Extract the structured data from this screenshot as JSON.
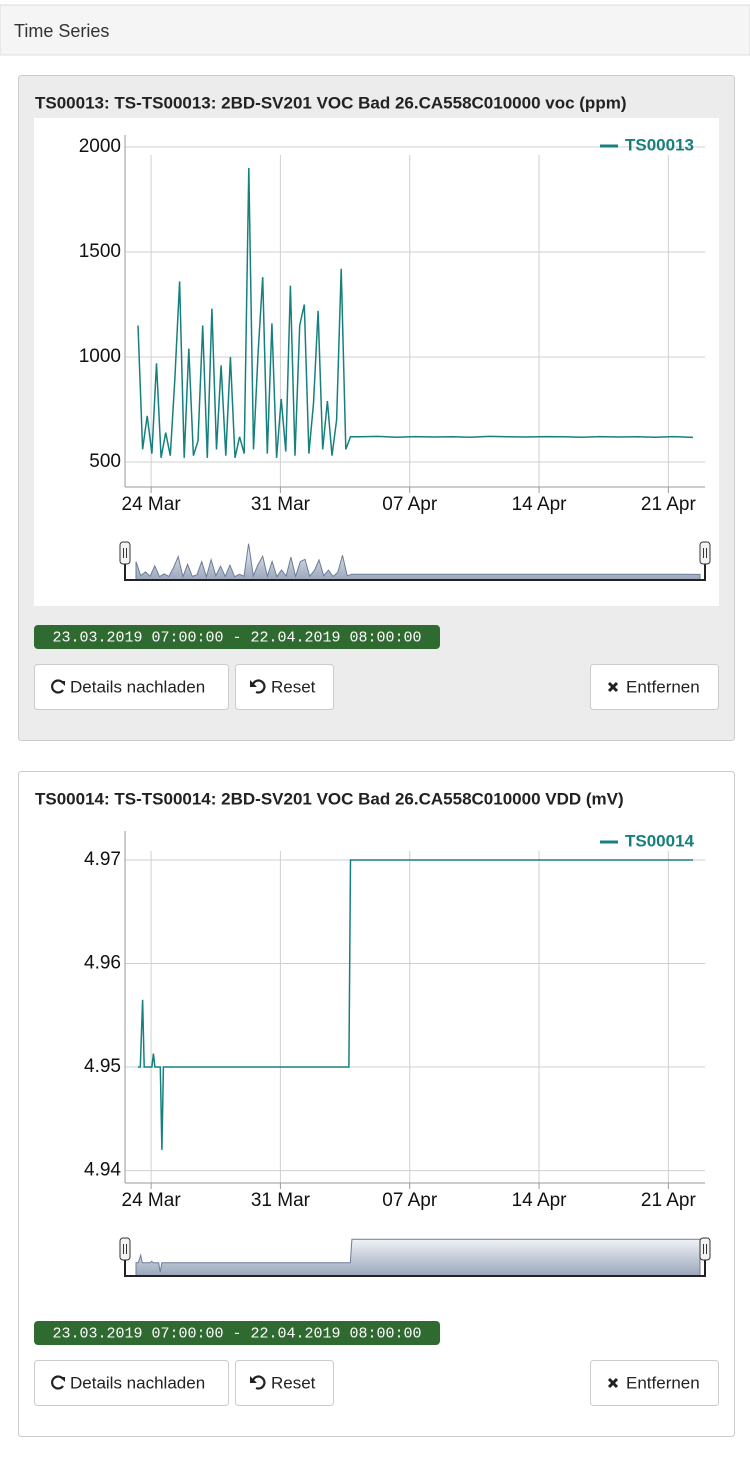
{
  "header": {
    "title": "Time Series"
  },
  "panels": [
    {
      "range_label": "23.03.2019 07:00:00 - 22.04.2019 08:00:00",
      "buttons": [
        "Details nachladen",
        "Reset",
        "Entfernen"
      ]
    },
    {
      "range_label": "23.03.2019 07:00:00 - 22.04.2019 08:00:00",
      "buttons": [
        "Details nachladen",
        "Reset",
        "Entfernen"
      ]
    }
  ],
  "chart_data": [
    {
      "type": "line",
      "title": "TS00013: TS-TS00013: 2BD-SV201 VOC Bad 26.CA558C010000 voc (ppm)",
      "x": [
        "2019-03-23T07:00",
        "2019-03-23T13:00",
        "2019-03-23T19:00",
        "2019-03-24T01:00",
        "2019-03-24T07:00",
        "2019-03-24T13:00",
        "2019-03-24T19:00",
        "2019-03-25T01:00",
        "2019-03-25T07:00",
        "2019-03-25T13:00",
        "2019-03-25T19:00",
        "2019-03-26T01:00",
        "2019-03-26T07:00",
        "2019-03-26T13:00",
        "2019-03-26T19:00",
        "2019-03-27T01:00",
        "2019-03-27T07:00",
        "2019-03-27T13:00",
        "2019-03-27T19:00",
        "2019-03-28T01:00",
        "2019-03-28T07:00",
        "2019-03-28T13:00",
        "2019-03-28T19:00",
        "2019-03-29T01:00",
        "2019-03-29T07:00",
        "2019-03-29T13:00",
        "2019-03-29T19:00",
        "2019-03-30T01:00",
        "2019-03-30T07:00",
        "2019-03-30T13:00",
        "2019-03-30T19:00",
        "2019-03-31T01:00",
        "2019-03-31T07:00",
        "2019-03-31T13:00",
        "2019-03-31T19:00",
        "2019-04-01T01:00",
        "2019-04-01T07:00",
        "2019-04-01T13:00",
        "2019-04-01T19:00",
        "2019-04-02T01:00",
        "2019-04-02T07:00",
        "2019-04-02T13:00",
        "2019-04-02T19:00",
        "2019-04-03T01:00",
        "2019-04-03T07:00",
        "2019-04-03T13:00",
        "2019-04-03T19:00",
        "2019-04-04T07:00",
        "2019-04-05T07:00",
        "2019-04-06T07:00",
        "2019-04-07T07:00",
        "2019-04-08T07:00",
        "2019-04-09T07:00",
        "2019-04-10T07:00",
        "2019-04-11T07:00",
        "2019-04-12T07:00",
        "2019-04-13T07:00",
        "2019-04-14T07:00",
        "2019-04-15T07:00",
        "2019-04-16T07:00",
        "2019-04-17T07:00",
        "2019-04-18T07:00",
        "2019-04-19T07:00",
        "2019-04-20T07:00",
        "2019-04-21T07:00",
        "2019-04-22T08:00"
      ],
      "series": [
        {
          "name": "TS00013",
          "color": "#17807e",
          "values": [
            1150,
            560,
            720,
            540,
            970,
            520,
            640,
            530,
            900,
            1360,
            520,
            1040,
            530,
            600,
            1150,
            520,
            1230,
            560,
            960,
            530,
            1000,
            520,
            620,
            540,
            1900,
            560,
            1020,
            1380,
            540,
            1160,
            520,
            800,
            550,
            1340,
            530,
            1150,
            1250,
            540,
            780,
            1220,
            560,
            790,
            530,
            700,
            1420,
            560,
            620,
            620,
            622,
            618,
            621,
            619,
            620,
            618,
            622,
            620,
            619,
            621,
            620,
            618,
            621,
            619,
            620,
            618,
            621,
            617
          ]
        }
      ],
      "xlim": [
        "2019-03-23T07:00",
        "2019-04-22T08:00"
      ],
      "xticks": [
        {
          "value": "2019-03-24T00:00",
          "label": "24 Mar"
        },
        {
          "value": "2019-03-31T00:00",
          "label": "31 Mar"
        },
        {
          "value": "2019-04-07T00:00",
          "label": "07 Apr"
        },
        {
          "value": "2019-04-14T00:00",
          "label": "14 Apr"
        },
        {
          "value": "2019-04-21T00:00",
          "label": "21 Apr"
        }
      ],
      "ylim": [
        381,
        2057
      ],
      "yticks": [
        500,
        1000,
        1500,
        2000
      ],
      "grid": true,
      "legend": "top-right"
    },
    {
      "type": "line",
      "title": "TS00014: TS-TS00014: 2BD-SV201 VOC Bad 26.CA558C010000 VDD (mV)",
      "x": [
        "2019-03-23T07:00",
        "2019-03-23T10:00",
        "2019-03-23T13:00",
        "2019-03-23T15:00",
        "2019-03-24T01:00",
        "2019-03-24T03:00",
        "2019-03-24T05:00",
        "2019-03-24T12:00",
        "2019-03-24T14:00",
        "2019-03-24T16:00",
        "2019-04-03T17:00",
        "2019-04-03T19:00",
        "2019-04-22T08:00"
      ],
      "series": [
        {
          "name": "TS00014",
          "color": "#17807e",
          "values": [
            4.95,
            4.95,
            4.9565,
            4.95,
            4.95,
            4.9513,
            4.95,
            4.95,
            4.942,
            4.95,
            4.95,
            4.97,
            4.97
          ]
        }
      ],
      "xlim": [
        "2019-03-23T07:00",
        "2019-04-22T08:00"
      ],
      "xticks": [
        {
          "value": "2019-03-24T00:00",
          "label": "24 Mar"
        },
        {
          "value": "2019-03-31T00:00",
          "label": "31 Mar"
        },
        {
          "value": "2019-04-07T00:00",
          "label": "07 Apr"
        },
        {
          "value": "2019-04-14T00:00",
          "label": "14 Apr"
        },
        {
          "value": "2019-04-21T00:00",
          "label": "21 Apr"
        }
      ],
      "ylim": [
        4.9388,
        4.9728
      ],
      "yticks": [
        4.94,
        4.95,
        4.96,
        4.97
      ],
      "grid": true,
      "legend": "top-right"
    }
  ]
}
